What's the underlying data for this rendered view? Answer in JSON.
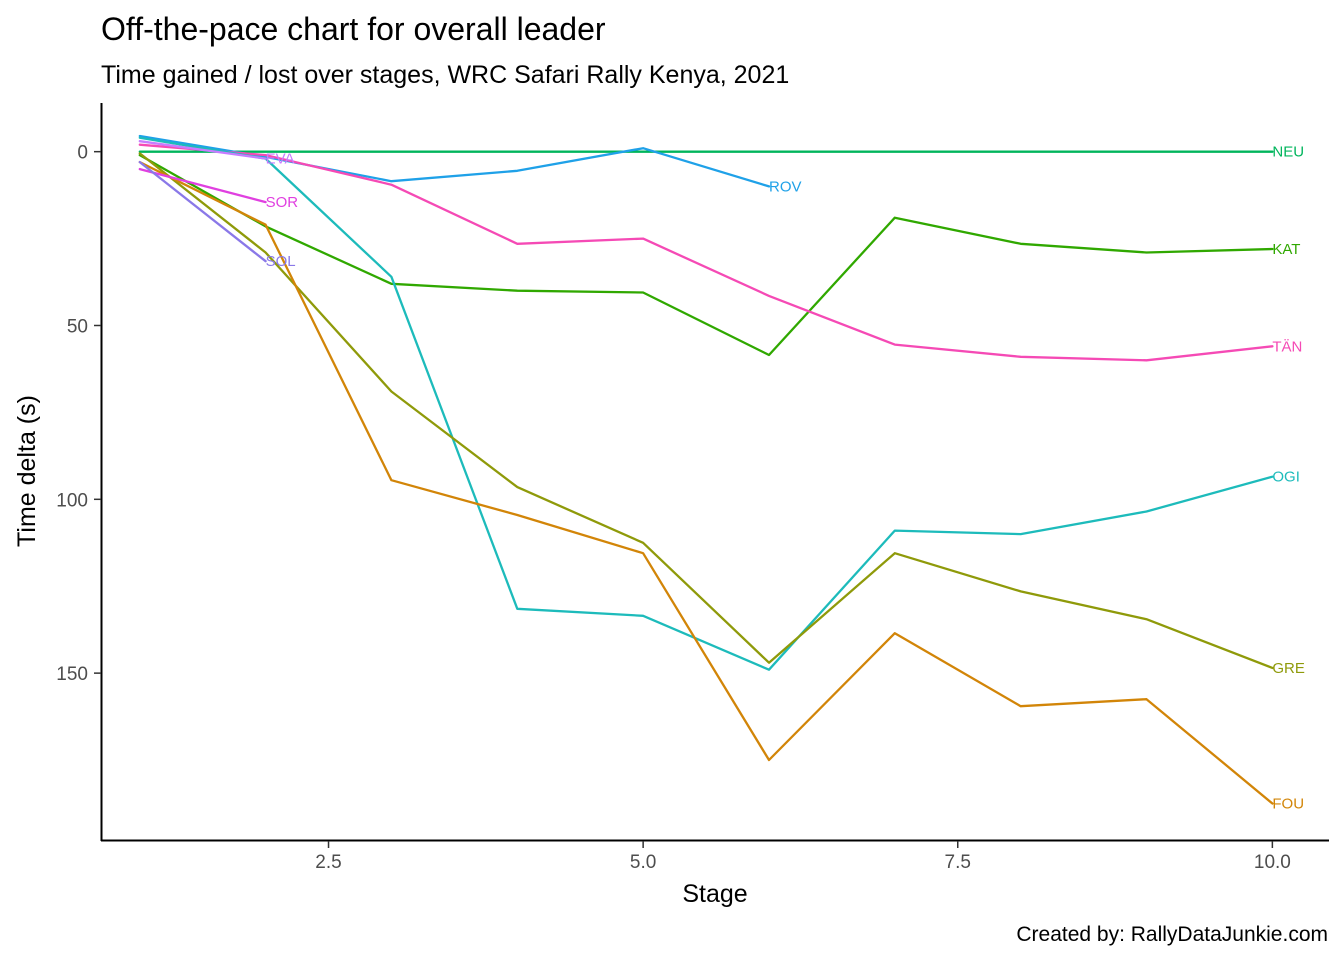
{
  "chart_data": {
    "type": "line",
    "title": "Off-the-pace chart for overall leader",
    "subtitle": "Time gained / lost over stages, WRC Safari Rally Kenya, 2021",
    "xlabel": "Stage",
    "ylabel": "Time delta (s)",
    "caption": "Created by: RallyDataJunkie.com",
    "xlim": [
      0.7,
      10.45
    ],
    "ylim": [
      -14,
      198
    ],
    "y_reversed": true,
    "x_ticks": [
      2.5,
      5.0,
      7.5,
      10.0
    ],
    "x_tick_labels": [
      "2.5",
      "5.0",
      "7.5",
      "10.0"
    ],
    "y_ticks": [
      0,
      50,
      100,
      150
    ],
    "y_tick_labels": [
      "0",
      "50",
      "100",
      "150"
    ],
    "grid": false,
    "legend": "none",
    "series": [
      {
        "name": "NEU",
        "color": "#00b55c",
        "x": [
          1,
          2,
          3,
          4,
          5,
          6,
          7,
          8,
          9,
          10
        ],
        "y": [
          0,
          0,
          0,
          0,
          0,
          0,
          0,
          0,
          0,
          0
        ]
      },
      {
        "name": "ROV",
        "color": "#1fa1e8",
        "x": [
          1,
          2,
          3,
          4,
          5,
          6
        ],
        "y": [
          -4.5,
          1.5,
          8.5,
          5.5,
          -1,
          10
        ]
      },
      {
        "name": "KAT",
        "color": "#30a800",
        "x": [
          1,
          2,
          3,
          4,
          5,
          6,
          7,
          8,
          9,
          10
        ],
        "y": [
          1,
          21.5,
          38,
          40,
          40.5,
          58.5,
          19,
          26.5,
          29,
          28
        ]
      },
      {
        "name": "TÄN",
        "color": "#f54ab5",
        "x": [
          1,
          2,
          3,
          4,
          5,
          6,
          7,
          8,
          9,
          10
        ],
        "y": [
          -2,
          1,
          9.5,
          26.5,
          25,
          41.5,
          55.5,
          59,
          60,
          56
        ]
      },
      {
        "name": "OGI",
        "color": "#1dbbbb",
        "x": [
          1,
          2,
          3,
          4,
          5,
          6,
          7,
          8,
          9,
          10
        ],
        "y": [
          -4,
          2,
          36,
          131.5,
          133.5,
          149,
          109,
          110,
          103.5,
          93.5
        ]
      },
      {
        "name": "GRE",
        "color": "#8f9a0a",
        "x": [
          1,
          2,
          3,
          4,
          5,
          6,
          7,
          8,
          9,
          10
        ],
        "y": [
          0.5,
          29,
          69,
          96.5,
          112.5,
          147,
          115.5,
          126.5,
          134.5,
          148.5
        ]
      },
      {
        "name": "FOU",
        "color": "#d28508",
        "x": [
          1,
          2,
          3,
          4,
          5,
          6,
          7,
          8,
          9,
          10
        ],
        "y": [
          3,
          21,
          94.5,
          104.5,
          115.5,
          175,
          138.5,
          159.5,
          157.5,
          187.5
        ]
      },
      {
        "name": "EVA",
        "color": "#c77cff",
        "x": [
          1,
          2
        ],
        "y": [
          -3,
          2
        ]
      },
      {
        "name": "SOR",
        "color": "#e040e0",
        "x": [
          1,
          2
        ],
        "y": [
          5,
          14.5
        ]
      },
      {
        "name": "SOL",
        "color": "#8a78e8",
        "x": [
          1,
          2
        ],
        "y": [
          3,
          31.5
        ]
      }
    ]
  }
}
